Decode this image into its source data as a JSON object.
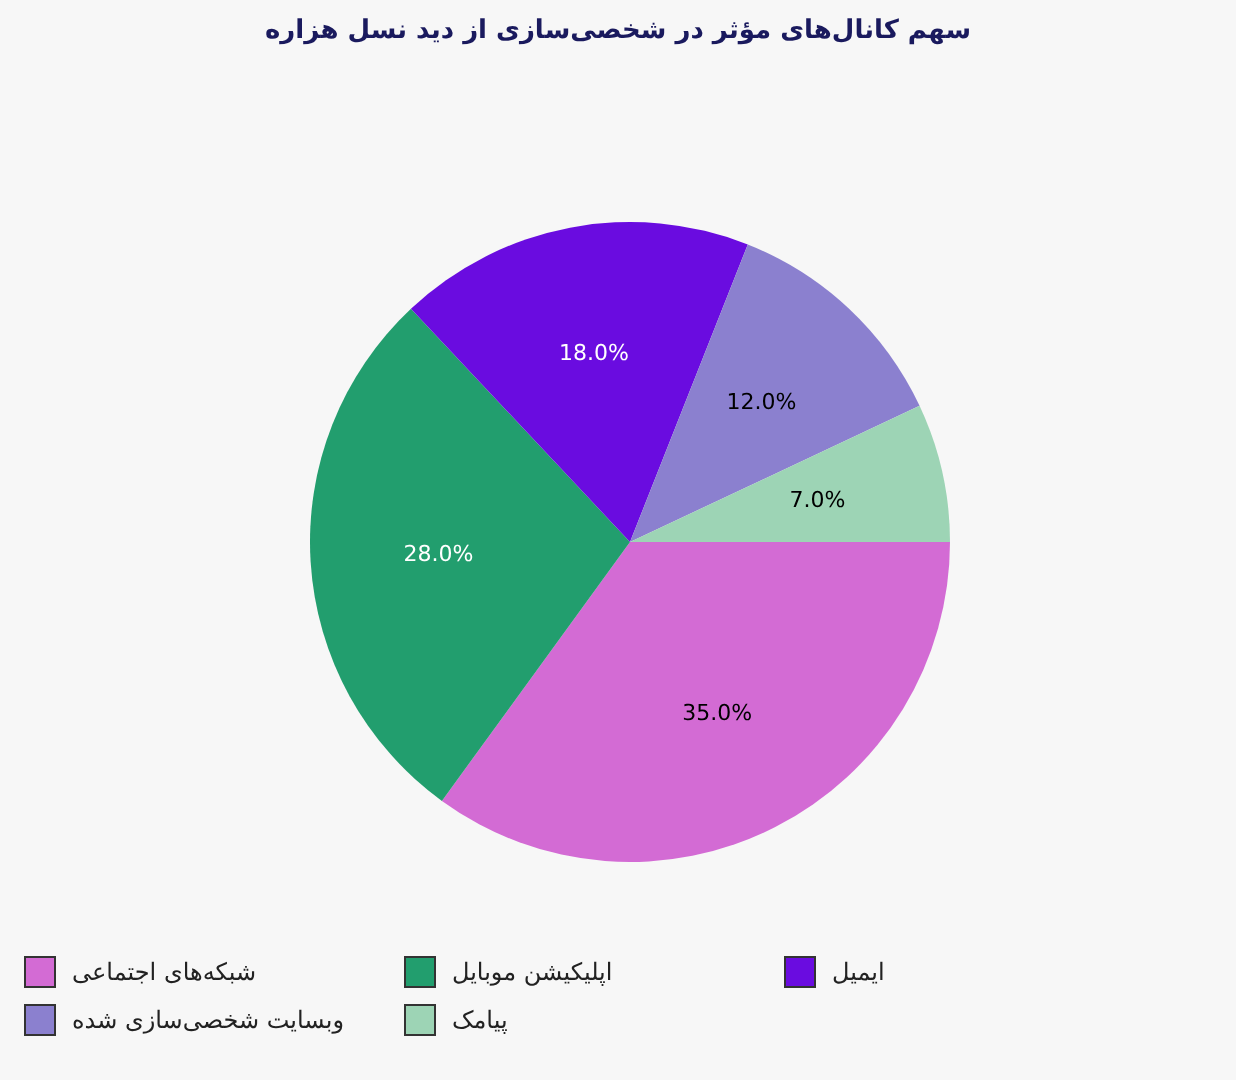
{
  "chart_data": {
    "type": "pie",
    "title": "سهم کانال‌های مؤثر در شخصی‌سازی از دید نسل هزاره",
    "categories": [
      "شبکه‌های  اجتماعی",
      "اپلیکیشن موبایل",
      "ایمیل",
      "وبسایت شخصی‌سازی شده",
      "پیامک"
    ],
    "values": [
      35,
      28,
      18,
      12,
      7
    ],
    "colors": [
      "#d36bd4",
      "#229e6e",
      "#6a0ce0",
      "#8b80cf",
      "#9dd4b5"
    ],
    "value_labels": [
      "35.0%",
      "28.0%",
      "18.0%",
      "12.0%",
      "7.0%"
    ],
    "legend": "bottom"
  }
}
